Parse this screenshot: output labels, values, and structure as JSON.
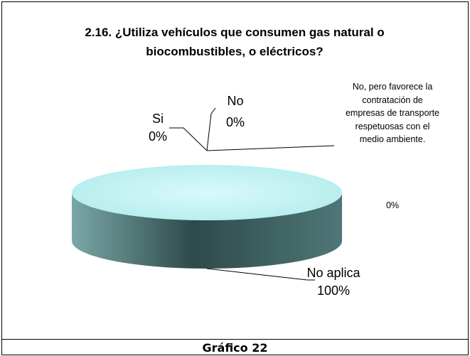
{
  "chart_data": {
    "type": "pie",
    "title": "2.16. ¿Utiliza vehículos que consumen gas natural o biocombustibles, o eléctricos?",
    "categories": [
      "Si",
      "No",
      "No, pero favorece la contratación de empresas de transporte respetuosas con el medio ambiente.",
      "No aplica"
    ],
    "values": [
      0,
      0,
      0,
      100
    ],
    "value_labels": [
      "0%",
      "0%",
      "0%",
      "100%"
    ],
    "caption": "Gráfico 22"
  }
}
